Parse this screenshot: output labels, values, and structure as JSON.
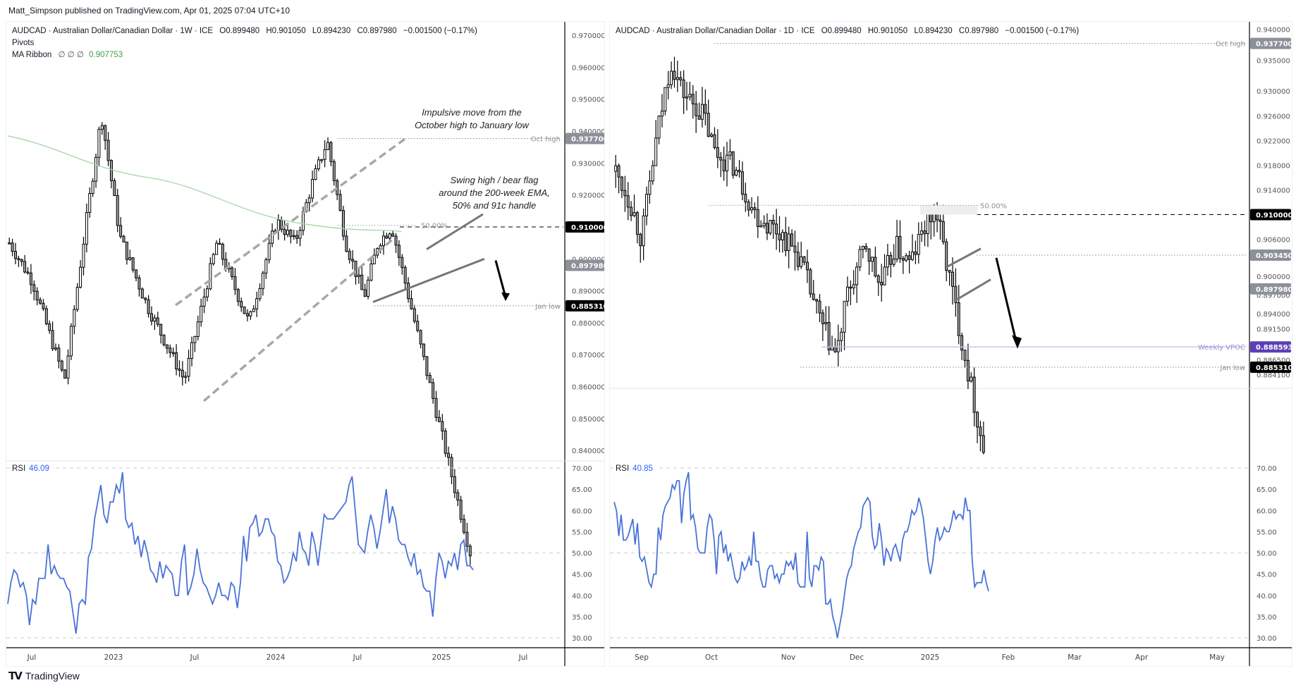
{
  "header": {
    "published_text": "Matt_Simpson published on TradingView.com, Apr 01, 2025 07:04 UTC+10"
  },
  "footer": {
    "brand": "TradingView",
    "logo_icon": "tradingview-logo-icon"
  },
  "colors": {
    "rsi_line": "#4a72d8",
    "ma_line": "#a5d6a7",
    "bull_fill": "#ffffff",
    "bear_fill": "#9a9ea6",
    "candle_outline": "#000000",
    "label_gray": "#8c9099",
    "label_black": "#000000",
    "vpoc_purple": "#5b3fb5",
    "vpoc_line": "#c9c0ea",
    "channel_dash": "#a8a8a8"
  },
  "left_chart": {
    "legend": {
      "symbol_line": "AUDCAD · Australian Dollar/Canadian Dollar · 1W · ICE",
      "open": "O0.899480",
      "high": "H0.901050",
      "low": "L0.894230",
      "close": "C0.897980",
      "change": "−0.001500 (−0.17%)",
      "indicator_1": "Pivots",
      "indicator_2_name": "MA Ribbon",
      "indicator_2_params": "∅ ∅ ∅",
      "indicator_2_value": "0.907753"
    },
    "price_axis": {
      "min": 0.8385,
      "max": 0.972,
      "ticks": [
        "0.970000",
        "0.960000",
        "0.950000",
        "0.940000",
        "0.930000",
        "0.920000",
        "0.910000",
        "0.900000",
        "0.890000",
        "0.880000",
        "0.870000",
        "0.860000",
        "0.850000",
        "0.840000"
      ]
    },
    "price_labels": [
      {
        "value": "0.937700",
        "price": 0.9377,
        "style": "gray",
        "line_label": "Oct high"
      },
      {
        "value": "0.910000",
        "price": 0.91,
        "style": "black",
        "line_label": ""
      },
      {
        "value": "0.897980",
        "price": 0.89798,
        "style": "gray",
        "line_label": ""
      },
      {
        "value": "0.885310",
        "price": 0.88531,
        "style": "black",
        "line_label": "Jan low"
      }
    ],
    "fib_label": "50.00%",
    "annotations": [
      {
        "text_lines": [
          "Impulsive move from the",
          "October high to January low"
        ]
      },
      {
        "text_lines": [
          "Swing high / bear flag",
          "around the 200-week EMA,",
          "50% and 91c handle"
        ]
      }
    ],
    "date_axis": [
      "Jul",
      "2023",
      "Jul",
      "2024",
      "Jul",
      "2025",
      "Jul"
    ],
    "rsi": {
      "label": "RSI",
      "value": "46.09",
      "ticks": [
        "70.00",
        "65.00",
        "60.00",
        "55.00",
        "50.00",
        "45.00",
        "40.00",
        "35.00",
        "30.00"
      ],
      "series": [
        38,
        43,
        46,
        45,
        42,
        43,
        40,
        33,
        39,
        38,
        44,
        44,
        44,
        52,
        45,
        47,
        45,
        44,
        44,
        42,
        41,
        36,
        31,
        38,
        39,
        38,
        49,
        51,
        58,
        62,
        66,
        59,
        57,
        62,
        62,
        66,
        64,
        69,
        58,
        56,
        57,
        52,
        54,
        49,
        53,
        50,
        46,
        45,
        43,
        48,
        44,
        47,
        46,
        45,
        40,
        40,
        48,
        52,
        40,
        42,
        45,
        51,
        46,
        43,
        42,
        40,
        38,
        40,
        43,
        40,
        40,
        39,
        43,
        42,
        37,
        43,
        54,
        48,
        56,
        57,
        59,
        54,
        55,
        58,
        58,
        55,
        54,
        48,
        47,
        43,
        44,
        46,
        50,
        48,
        55,
        51,
        50,
        47,
        55,
        52,
        47,
        53,
        59,
        58,
        58,
        58,
        59,
        60,
        61,
        62,
        66,
        68,
        60,
        52,
        51,
        50,
        55,
        59,
        56,
        51,
        55,
        60,
        65,
        57,
        61,
        58,
        53,
        52,
        52,
        49,
        47,
        50,
        45,
        46,
        42,
        41,
        41,
        35,
        44,
        50,
        48,
        44,
        48,
        47,
        50,
        46,
        52,
        53,
        47,
        47,
        46
      ]
    }
  },
  "right_chart": {
    "legend": {
      "symbol_line": "AUDCAD · Australian Dollar/Canadian Dollar · 1D · ICE",
      "open": "O0.899480",
      "high": "H0.901050",
      "low": "L0.894230",
      "close": "C0.897980",
      "change": "−0.001500 (−0.17%)"
    },
    "price_axis": {
      "min": 0.8828,
      "max": 0.9412,
      "ticks": [
        "0.940000",
        "0.935000",
        "0.930000",
        "0.926000",
        "0.922000",
        "0.918000",
        "0.914000",
        "0.906000",
        "0.900000",
        "0.897000",
        "0.894000",
        "0.891500",
        "0.886500",
        "0.884100"
      ]
    },
    "price_labels": [
      {
        "value": "0.937700",
        "price": 0.9377,
        "style": "gray",
        "line_label": "Oct high"
      },
      {
        "value": "0.910000",
        "price": 0.91,
        "style": "black",
        "line_label": ""
      },
      {
        "value": "0.903450",
        "price": 0.90345,
        "style": "gray",
        "line_label": ""
      },
      {
        "value": "0.897980",
        "price": 0.89798,
        "style": "gray",
        "line_label": ""
      },
      {
        "value": "0.888593",
        "price": 0.888593,
        "style": "purple",
        "line_label": "Weekly VPOC"
      },
      {
        "value": "0.885310",
        "price": 0.88531,
        "style": "black",
        "line_label": "Jan low"
      }
    ],
    "fib_label": "50.00%",
    "date_axis": [
      "Sep",
      "Oct",
      "Nov",
      "Dec",
      "2025",
      "Feb",
      "Mar",
      "Apr",
      "May"
    ],
    "rsi": {
      "label": "RSI",
      "value": "40.85",
      "ticks": [
        "70.00",
        "65.00",
        "60.00",
        "55.00",
        "50.00",
        "45.00",
        "40.00",
        "35.00",
        "30.00"
      ],
      "series": [
        62,
        60,
        54,
        59,
        53,
        53,
        54,
        56,
        58,
        52,
        57,
        49,
        48,
        49,
        46,
        43,
        42,
        45,
        45,
        56,
        53,
        59,
        61,
        62,
        63,
        66,
        65,
        67,
        67,
        57,
        64,
        67,
        69,
        58,
        59,
        56,
        51,
        50,
        50,
        50,
        56,
        59,
        58,
        53,
        45,
        54,
        55,
        50,
        52,
        48,
        50,
        47,
        44,
        43,
        44,
        48,
        46,
        47,
        49,
        47,
        55,
        48,
        48,
        44,
        42,
        42,
        46,
        47,
        47,
        44,
        45,
        43,
        45,
        45,
        48,
        47,
        48,
        46,
        50,
        43,
        42,
        42,
        42,
        55,
        44,
        42,
        47,
        47,
        46,
        49,
        48,
        38,
        38,
        39,
        35,
        33,
        30,
        33,
        36,
        40,
        44,
        46,
        47,
        51,
        53,
        55,
        56,
        61,
        62,
        63,
        62,
        54,
        51,
        52,
        57,
        53,
        47,
        51,
        50,
        48,
        51,
        52,
        50,
        48,
        53,
        55,
        55,
        57,
        60,
        59,
        60,
        63,
        61,
        58,
        53,
        48,
        45,
        48,
        53,
        56,
        53,
        54,
        56,
        55,
        55,
        57,
        60,
        58,
        59,
        59,
        58,
        63,
        60,
        60,
        48,
        42,
        43,
        43,
        43,
        46,
        43,
        41
      ]
    }
  }
}
